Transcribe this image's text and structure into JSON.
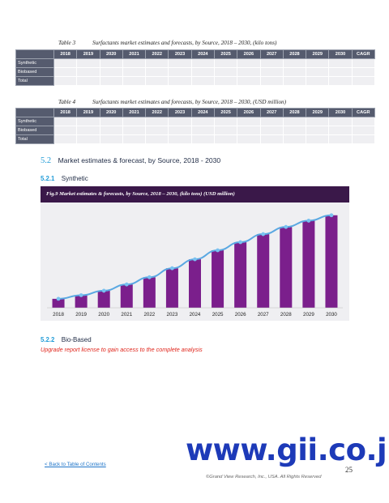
{
  "table3": {
    "label": "Table 3",
    "caption": "Surfactants market estimates and forecasts, by Source, 2018 – 2030, (kilo tons)",
    "columns": [
      "2018",
      "2019",
      "2020",
      "2021",
      "2022",
      "2023",
      "2024",
      "2025",
      "2026",
      "2027",
      "2028",
      "2029",
      "2030",
      "CAGR"
    ],
    "rows": [
      "Synthetic",
      "Biobased",
      "Total"
    ]
  },
  "table4": {
    "label": "Table 4",
    "caption": "Surfactants market estimates and forecasts, by Source, 2018 – 2030, (USD million)",
    "columns": [
      "2018",
      "2019",
      "2020",
      "2021",
      "2022",
      "2023",
      "2024",
      "2025",
      "2026",
      "2027",
      "2028",
      "2029",
      "2030",
      "CAGR"
    ],
    "rows": [
      "Synthetic",
      "Biobased",
      "Total"
    ]
  },
  "section": {
    "number": "5.2",
    "title": "Market estimates & forecast, by Source, 2018 - 2030"
  },
  "sub1": {
    "number": "5.2.1",
    "title": "Synthetic"
  },
  "sub2": {
    "number": "5.2.2",
    "title": "Bio-Based"
  },
  "upgrade_text": "Upgrade report license to gain access to the complete analysis",
  "chart_data": {
    "type": "bar",
    "title": "Fig.9  Market estimates & forecasts, by Source, 2018 – 2030, (kilo tons) (USD million)",
    "categories": [
      "2018",
      "2019",
      "2020",
      "2021",
      "2022",
      "2023",
      "2024",
      "2025",
      "2026",
      "2027",
      "2028",
      "2029",
      "2030"
    ],
    "series": [
      {
        "kind": "bar",
        "values": [
          10,
          14,
          19,
          26,
          34,
          44,
          54,
          64,
          73,
          82,
          90,
          97,
          103
        ]
      },
      {
        "kind": "line",
        "values": [
          10,
          14,
          19,
          26,
          34,
          44,
          54,
          64,
          73,
          82,
          90,
          97,
          103
        ]
      }
    ],
    "ylim": [
      0,
      110
    ],
    "colors": {
      "bar": "#7b1f8c",
      "line": "#5aa8e2",
      "marker": "#79c1f0",
      "background": "#efeff2",
      "title_bar": "#3a1849"
    },
    "grid": false,
    "legend": "none"
  },
  "watermark": "www.gii.co.jp",
  "back_link": "< Back to Table of Contents",
  "copyright": "©Grand View Research, Inc., USA. All Rights Reserved",
  "page_number": "25"
}
